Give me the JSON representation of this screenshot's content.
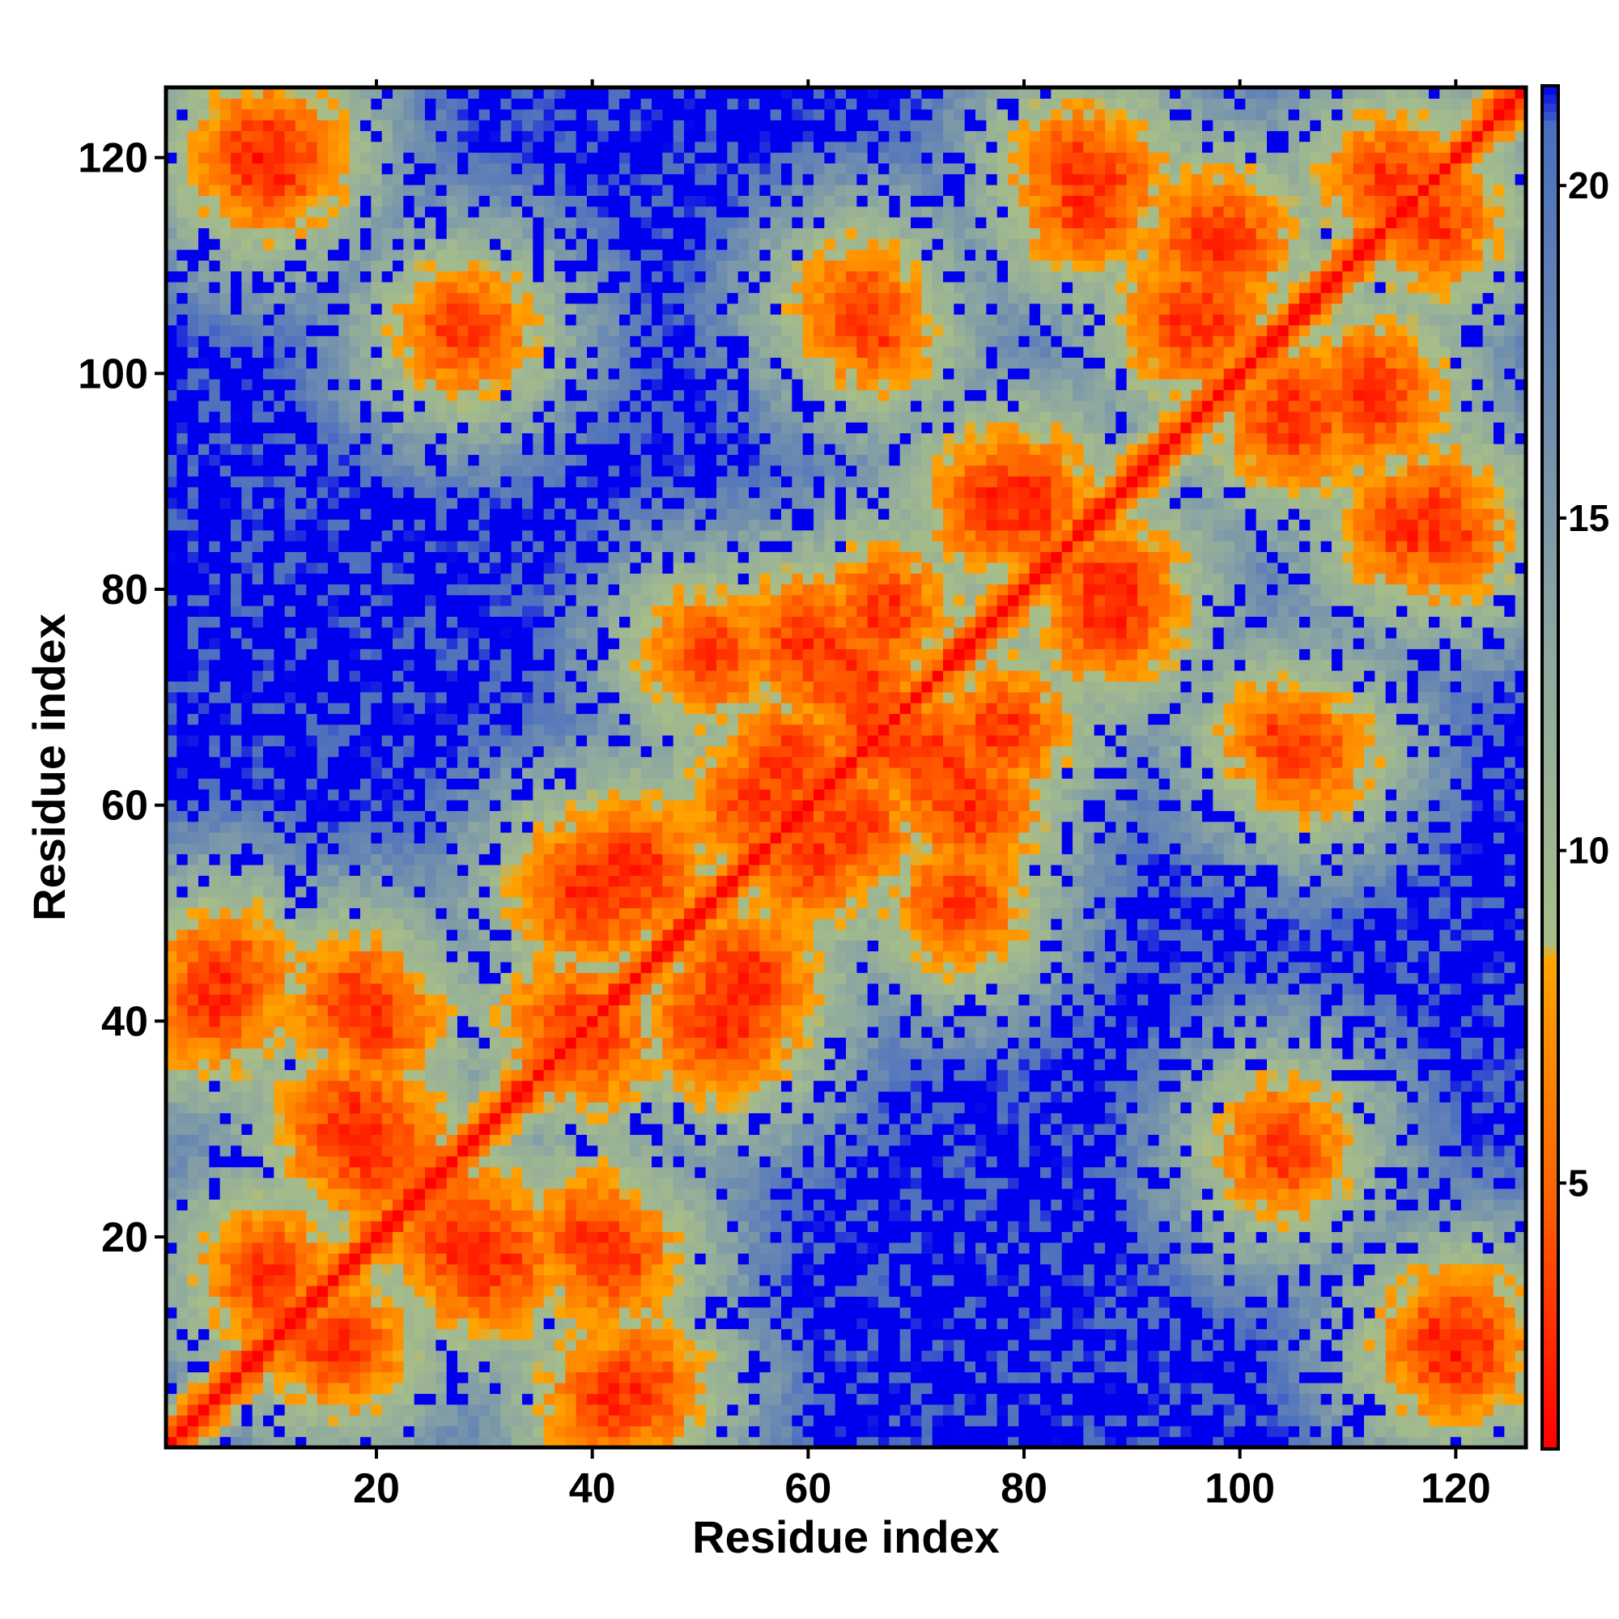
{
  "chart_data": {
    "type": "heatmap",
    "title": "",
    "xlabel": "Residue index",
    "ylabel": "Residue index",
    "n_residues": 126,
    "xlim": [
      1,
      126
    ],
    "ylim": [
      1,
      126
    ],
    "x_ticks": [
      20,
      40,
      60,
      80,
      100,
      120
    ],
    "y_ticks": [
      20,
      40,
      60,
      80,
      100,
      120
    ],
    "colorbar": {
      "range": [
        1,
        21.5
      ],
      "ticks": [
        5,
        10,
        15,
        20
      ],
      "colors": [
        {
          "value": 1,
          "color": "#ff0000"
        },
        {
          "value": 5,
          "color": "#ff6600"
        },
        {
          "value": 8.4,
          "color": "#ffa500"
        },
        {
          "value": 8.6,
          "color": "#a7be88"
        },
        {
          "value": 13,
          "color": "#8ea8a0"
        },
        {
          "value": 20.9,
          "color": "#4c6fc0"
        },
        {
          "value": 21.5,
          "color": "#0000ee"
        }
      ]
    },
    "description_values": {
      "diagonal_distance": 1,
      "background_distance": 21.5
    },
    "contact_patches": [
      {
        "i": 10,
        "j": 120,
        "w": 5,
        "d": 2.5
      },
      {
        "i": 28,
        "j": 104,
        "w": 3,
        "d": 3
      },
      {
        "i": 65,
        "j": 106,
        "w": 3,
        "d": 3
      },
      {
        "i": 86,
        "j": 116,
        "w": 4,
        "d": 3
      },
      {
        "i": 98,
        "j": 112,
        "w": 5,
        "d": 3
      },
      {
        "i": 105,
        "j": 96,
        "w": 5,
        "d": 3
      },
      {
        "i": 118,
        "j": 87,
        "w": 3,
        "d": 3
      },
      {
        "i": 78,
        "j": 88,
        "w": 5,
        "d": 3
      },
      {
        "i": 88,
        "j": 80,
        "w": 5,
        "d": 3
      },
      {
        "i": 60,
        "j": 75,
        "w": 4,
        "d": 3
      },
      {
        "i": 66,
        "j": 68,
        "w": 3,
        "d": 3
      },
      {
        "i": 72,
        "j": 64,
        "w": 4,
        "d": 3
      },
      {
        "i": 40,
        "j": 52,
        "w": 6,
        "d": 3
      },
      {
        "i": 54,
        "j": 44,
        "w": 5,
        "d": 3
      },
      {
        "i": 55,
        "j": 60,
        "w": 3,
        "d": 3
      },
      {
        "i": 74,
        "j": 51,
        "w": 3,
        "d": 3
      },
      {
        "i": 104,
        "j": 66,
        "w": 2,
        "d": 3
      },
      {
        "i": 104,
        "j": 29,
        "w": 2,
        "d": 3
      },
      {
        "i": 6,
        "j": 44,
        "w": 4,
        "d": 3
      },
      {
        "i": 18,
        "j": 42,
        "w": 3,
        "d": 3
      },
      {
        "i": 18,
        "j": 30,
        "w": 6,
        "d": 3
      },
      {
        "i": 28,
        "j": 20,
        "w": 5,
        "d": 3
      },
      {
        "i": 40,
        "j": 20,
        "w": 3,
        "d": 3
      },
      {
        "i": 10,
        "j": 17,
        "w": 3,
        "d": 3
      },
      {
        "i": 16,
        "j": 10,
        "w": 3,
        "d": 3
      },
      {
        "i": 42,
        "j": 5,
        "w": 4,
        "d": 3
      },
      {
        "i": 120,
        "j": 10,
        "w": 5,
        "d": 3
      },
      {
        "i": 118,
        "j": 114,
        "w": 3,
        "d": 3
      },
      {
        "i": 119,
        "j": 85,
        "w": 3,
        "d": 3
      },
      {
        "i": 40,
        "j": 38,
        "w": 3,
        "d": 3
      },
      {
        "i": 67,
        "j": 78,
        "w": 3,
        "d": 3
      },
      {
        "i": 64,
        "j": 58,
        "w": 3,
        "d": 3
      }
    ]
  }
}
